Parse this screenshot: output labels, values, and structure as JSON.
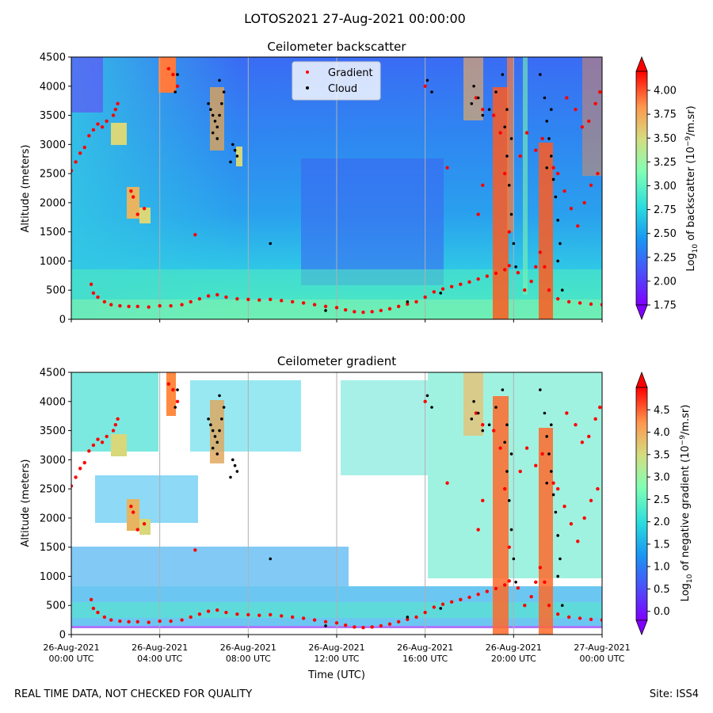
{
  "figure": {
    "suptitle": "LOTOS2021 27-Aug-2021 00:00:00",
    "footer_left": "REAL TIME DATA, NOT CHECKED FOR QUALITY",
    "footer_right": "Site: ISS4"
  },
  "chart_data": [
    {
      "type": "heatmap",
      "title": "Ceilometer backscatter",
      "xlabel": "",
      "ylabel": "Altitude (meters)",
      "x_range_hours": [
        0,
        24
      ],
      "ylim": [
        0,
        4500
      ],
      "y_ticks": [
        0,
        500,
        1000,
        1500,
        2000,
        2500,
        3000,
        3500,
        4000,
        4500
      ],
      "x_ticks": [
        0,
        4,
        8,
        12,
        16,
        20,
        24
      ],
      "x_tick_labels_shown": false,
      "vertical_gridlines": [
        4,
        8,
        12,
        16,
        20
      ],
      "colorbar": {
        "label": "Log10 of backscatter (10^-9/m.sr)",
        "label_parts": [
          "Log",
          "10",
          " of backscatter (10",
          "−9",
          "/m.sr)"
        ],
        "min": 1.75,
        "max": 4.2,
        "ticks": [
          1.75,
          2.0,
          2.25,
          2.5,
          2.75,
          3.0,
          3.25,
          3.5,
          3.75,
          4.0
        ],
        "tick_labels": [
          "1.75",
          "2.00",
          "2.25",
          "2.50",
          "2.75",
          "3.00",
          "3.25",
          "3.50",
          "3.75",
          "4.00"
        ],
        "colormap": "rainbow",
        "extend": "both"
      },
      "legend": {
        "placement": "top-center",
        "entries": [
          {
            "label": "Gradient",
            "color": "#ff0000"
          },
          {
            "label": "Cloud",
            "color": "#000000"
          }
        ]
      }
    },
    {
      "type": "heatmap",
      "title": "Ceilometer gradient",
      "xlabel": "Time (UTC)",
      "ylabel": "Altitude (meters)",
      "x_range_hours": [
        0,
        24
      ],
      "ylim": [
        0,
        4500
      ],
      "y_ticks": [
        0,
        500,
        1000,
        1500,
        2000,
        2500,
        3000,
        3500,
        4000,
        4500
      ],
      "x_ticks": [
        0,
        4,
        8,
        12,
        16,
        20,
        24
      ],
      "x_tick_labels": [
        [
          "26-Aug-2021",
          "00:00 UTC"
        ],
        [
          "26-Aug-2021",
          "04:00 UTC"
        ],
        [
          "26-Aug-2021",
          "08:00 UTC"
        ],
        [
          "26-Aug-2021",
          "12:00 UTC"
        ],
        [
          "26-Aug-2021",
          "16:00 UTC"
        ],
        [
          "26-Aug-2021",
          "20:00 UTC"
        ],
        [
          "27-Aug-2021",
          "00:00 UTC"
        ]
      ],
      "x_tick_labels_shown": true,
      "vertical_gridlines": [
        4,
        8,
        12,
        16,
        20
      ],
      "colorbar": {
        "label": "Log10 of negative gradient (10^-9/m.sr)",
        "label_parts": [
          "Log",
          "10",
          " of negative gradient (10",
          "−9",
          "/m.sr)"
        ],
        "min": -0.2,
        "max": 5.0,
        "ticks": [
          0.0,
          0.5,
          1.0,
          1.5,
          2.0,
          2.5,
          3.0,
          3.5,
          4.0,
          4.5
        ],
        "tick_labels": [
          "0.0",
          "0.5",
          "1.0",
          "1.5",
          "2.0",
          "2.5",
          "3.0",
          "3.5",
          "4.0",
          "4.5"
        ],
        "colormap": "rainbow",
        "extend": "both"
      }
    }
  ],
  "gradient_series": {
    "name": "Gradient",
    "color": "#ff0000",
    "points": [
      [
        0.0,
        2550
      ],
      [
        0.2,
        2700
      ],
      [
        0.4,
        2850
      ],
      [
        0.6,
        2950
      ],
      [
        0.8,
        3150
      ],
      [
        1.0,
        3250
      ],
      [
        1.2,
        3350
      ],
      [
        1.4,
        3300
      ],
      [
        1.6,
        3400
      ],
      [
        1.9,
        3500
      ],
      [
        2.1,
        3700
      ],
      [
        0.9,
        600
      ],
      [
        1.0,
        450
      ],
      [
        1.2,
        380
      ],
      [
        1.5,
        300
      ],
      [
        1.8,
        250
      ],
      [
        2.2,
        230
      ],
      [
        2.6,
        220
      ],
      [
        3.0,
        220
      ],
      [
        3.5,
        210
      ],
      [
        4.0,
        230
      ],
      [
        4.5,
        230
      ],
      [
        5.0,
        250
      ],
      [
        5.4,
        300
      ],
      [
        5.8,
        350
      ],
      [
        6.2,
        400
      ],
      [
        6.6,
        420
      ],
      [
        7.0,
        380
      ],
      [
        7.5,
        350
      ],
      [
        8.0,
        340
      ],
      [
        8.5,
        330
      ],
      [
        9.0,
        340
      ],
      [
        9.5,
        320
      ],
      [
        10.0,
        300
      ],
      [
        10.5,
        280
      ],
      [
        11.0,
        250
      ],
      [
        11.5,
        220
      ],
      [
        12.0,
        200
      ],
      [
        12.4,
        160
      ],
      [
        12.8,
        130
      ],
      [
        13.2,
        120
      ],
      [
        13.6,
        130
      ],
      [
        14.0,
        150
      ],
      [
        14.4,
        180
      ],
      [
        14.8,
        220
      ],
      [
        15.2,
        260
      ],
      [
        15.6,
        300
      ],
      [
        16.0,
        380
      ],
      [
        16.4,
        470
      ],
      [
        16.8,
        520
      ],
      [
        17.2,
        560
      ],
      [
        17.6,
        600
      ],
      [
        18.0,
        640
      ],
      [
        18.4,
        690
      ],
      [
        18.8,
        740
      ],
      [
        19.2,
        790
      ],
      [
        19.6,
        850
      ],
      [
        19.8,
        920
      ],
      [
        20.2,
        800
      ],
      [
        20.5,
        500
      ],
      [
        20.8,
        650
      ],
      [
        21.0,
        900
      ],
      [
        21.2,
        1150
      ],
      [
        21.4,
        900
      ],
      [
        21.6,
        500
      ],
      [
        22.0,
        350
      ],
      [
        22.5,
        300
      ],
      [
        23.0,
        280
      ],
      [
        23.5,
        260
      ],
      [
        24.0,
        250
      ],
      [
        2.7,
        2200
      ],
      [
        2.8,
        2100
      ],
      [
        3.0,
        1800
      ],
      [
        3.3,
        1900
      ],
      [
        5.6,
        1450
      ],
      [
        2.0,
        3600
      ],
      [
        18.3,
        3800
      ],
      [
        18.6,
        3600
      ],
      [
        19.1,
        3500
      ],
      [
        19.4,
        3200
      ],
      [
        19.6,
        2500
      ],
      [
        19.8,
        1500
      ],
      [
        21.8,
        2600
      ],
      [
        22.0,
        2500
      ],
      [
        22.3,
        2200
      ],
      [
        22.6,
        1900
      ],
      [
        22.9,
        1600
      ],
      [
        23.2,
        2000
      ],
      [
        23.5,
        2300
      ],
      [
        23.8,
        2500
      ],
      [
        22.4,
        3800
      ],
      [
        22.8,
        3600
      ],
      [
        23.1,
        3300
      ],
      [
        23.4,
        3400
      ],
      [
        23.7,
        3700
      ],
      [
        23.9,
        3900
      ],
      [
        20.6,
        3200
      ],
      [
        21.3,
        3100
      ],
      [
        21.0,
        2900
      ],
      [
        20.3,
        2800
      ],
      [
        4.4,
        4300
      ],
      [
        4.6,
        4200
      ],
      [
        4.8,
        4000
      ],
      [
        16.0,
        4000
      ],
      [
        17.0,
        2600
      ],
      [
        18.6,
        2300
      ],
      [
        18.4,
        1800
      ]
    ]
  },
  "cloud_series": {
    "name": "Cloud",
    "color": "#000000",
    "points": [
      [
        6.2,
        3700
      ],
      [
        6.3,
        3600
      ],
      [
        6.4,
        3500
      ],
      [
        6.5,
        3400
      ],
      [
        6.6,
        3300
      ],
      [
        6.7,
        3500
      ],
      [
        6.8,
        3700
      ],
      [
        6.9,
        3900
      ],
      [
        6.6,
        3100
      ],
      [
        6.4,
        3200
      ],
      [
        7.3,
        3000
      ],
      [
        7.4,
        2900
      ],
      [
        7.5,
        2800
      ],
      [
        7.2,
        2700
      ],
      [
        6.7,
        4100
      ],
      [
        9.0,
        1300
      ],
      [
        4.8,
        4200
      ],
      [
        4.7,
        3900
      ],
      [
        16.1,
        4100
      ],
      [
        16.3,
        3900
      ],
      [
        18.1,
        3700
      ],
      [
        18.2,
        4000
      ],
      [
        18.4,
        3800
      ],
      [
        18.6,
        3500
      ],
      [
        18.9,
        3600
      ],
      [
        19.2,
        3900
      ],
      [
        19.5,
        4200
      ],
      [
        19.6,
        3300
      ],
      [
        19.7,
        2800
      ],
      [
        19.8,
        2300
      ],
      [
        19.9,
        1800
      ],
      [
        20.0,
        1300
      ],
      [
        20.1,
        900
      ],
      [
        19.7,
        3600
      ],
      [
        19.9,
        3100
      ],
      [
        21.2,
        4200
      ],
      [
        21.4,
        3800
      ],
      [
        21.5,
        3400
      ],
      [
        21.6,
        3100
      ],
      [
        21.7,
        2800
      ],
      [
        21.8,
        2400
      ],
      [
        21.9,
        2100
      ],
      [
        22.0,
        1700
      ],
      [
        22.1,
        1300
      ],
      [
        21.5,
        2600
      ],
      [
        21.7,
        3600
      ],
      [
        22.0,
        1000
      ],
      [
        22.2,
        500
      ],
      [
        16.7,
        450
      ],
      [
        15.2,
        300
      ],
      [
        11.5,
        150
      ]
    ]
  }
}
